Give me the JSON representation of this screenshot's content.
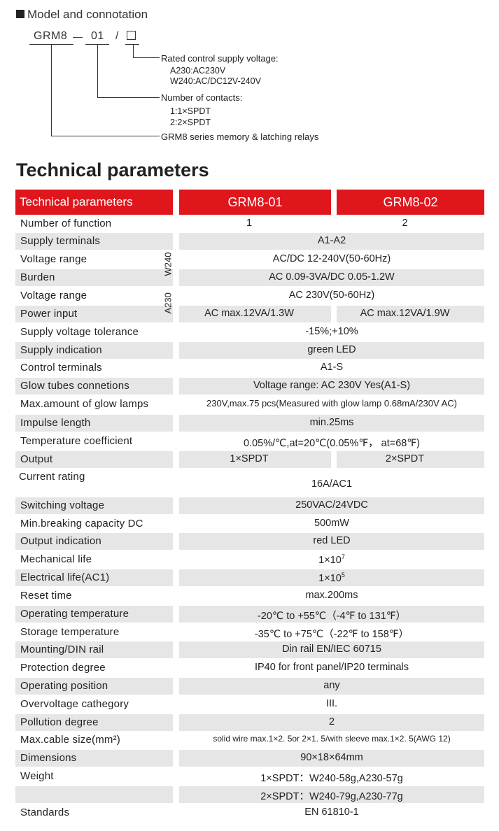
{
  "model": {
    "title": "Model and connotation",
    "code_parts": [
      "GRM8",
      "—",
      "01",
      "/"
    ],
    "notes": {
      "voltage_title": "Rated control supply voltage:",
      "voltage_a230": "A230:AC230V",
      "voltage_w240": "W240:AC/DC12V-240V",
      "contacts_title": "Number of contacts:",
      "contacts_1": "1:1×SPDT",
      "contacts_2": "2:2×SPDT",
      "series": "GRM8 series memory & latching relays"
    }
  },
  "tech": {
    "title": "Technical parameters",
    "headers": [
      "Technical parameters",
      "GRM8-01",
      "GRM8-02"
    ],
    "group_w240": "W240",
    "group_a230": "A230",
    "rows": [
      {
        "label": "Number of function",
        "v1": "1",
        "v2": "2"
      },
      {
        "label": "Supply terminals",
        "v": "A1-A2"
      },
      {
        "label": "Voltage range",
        "v": "AC/DC 12-240V(50-60Hz)"
      },
      {
        "label": "Burden",
        "v": "AC 0.09-3VA/DC 0.05-1.2W"
      },
      {
        "label": "Voltage range",
        "v": "AC 230V(50-60Hz)"
      },
      {
        "label": "Power input",
        "v1": "AC max.12VA/1.3W",
        "v2": "AC max.12VA/1.9W"
      },
      {
        "label": "Supply voltage tolerance",
        "v": "-15%;+10%"
      },
      {
        "label": "Supply indication",
        "v": "green LED"
      },
      {
        "label": "Control terminals",
        "v": "A1-S"
      },
      {
        "label": "Glow tubes connetions",
        "v": "Voltage range: AC 230V Yes(A1-S)"
      },
      {
        "label": "Max.amount of glow lamps",
        "v": "230V,max.75 pcs(Measured with glow lamp 0.68mA/230V AC)"
      },
      {
        "label": "Impulse length",
        "v": "min.25ms"
      },
      {
        "label": "Temperature coefficient",
        "v": "0.05%/℃,at=20℃(0.05%℉， at=68℉)"
      },
      {
        "label": "Output",
        "v1": "1×SPDT",
        "v2": "2×SPDT"
      },
      {
        "label": "Current rating",
        "v": "16A/AC1"
      },
      {
        "label": "Switching voltage",
        "v": "250VAC/24VDC"
      },
      {
        "label": "Min.breaking capacity DC",
        "v": "500mW"
      },
      {
        "label": "Output indication",
        "v": "red LED"
      },
      {
        "label": "Mechanical life",
        "v": "1×10",
        "sup": "7"
      },
      {
        "label": "Electrical life(AC1)",
        "v": "1×10",
        "sup": "5"
      },
      {
        "label": "Reset time",
        "v": "max.200ms"
      },
      {
        "label": "Operating temperature",
        "v": "-20℃ to +55℃（-4℉ to 131℉）"
      },
      {
        "label": "Storage temperature",
        "v": "-35℃ to +75℃（-22℉ to 158℉）"
      },
      {
        "label": "Mounting/DIN rail",
        "v": "Din rail EN/IEC 60715"
      },
      {
        "label": "Protection degree",
        "v": "IP40 for front panel/IP20 terminals"
      },
      {
        "label": "Operating position",
        "v": "any"
      },
      {
        "label": "Overvoltage cathegory",
        "v": "III."
      },
      {
        "label": "Pollution degree",
        "v": "2"
      },
      {
        "label": "Max.cable size(mm²)",
        "v": "solid wire max.1×2. 5or 2×1. 5/with  sleeve max.1×2. 5(AWG  12)"
      },
      {
        "label": "Dimensions",
        "v": "90×18×64mm"
      },
      {
        "label": "Weight",
        "v": "1×SPDT：W240-58g,A230-57g"
      },
      {
        "label": "",
        "v": "2×SPDT：W240-79g,A230-77g"
      },
      {
        "label": "Standards",
        "v": "EN 61810-1"
      }
    ]
  },
  "colors": {
    "accent": "#e0161d",
    "row_shade": "#e6e6e6"
  }
}
